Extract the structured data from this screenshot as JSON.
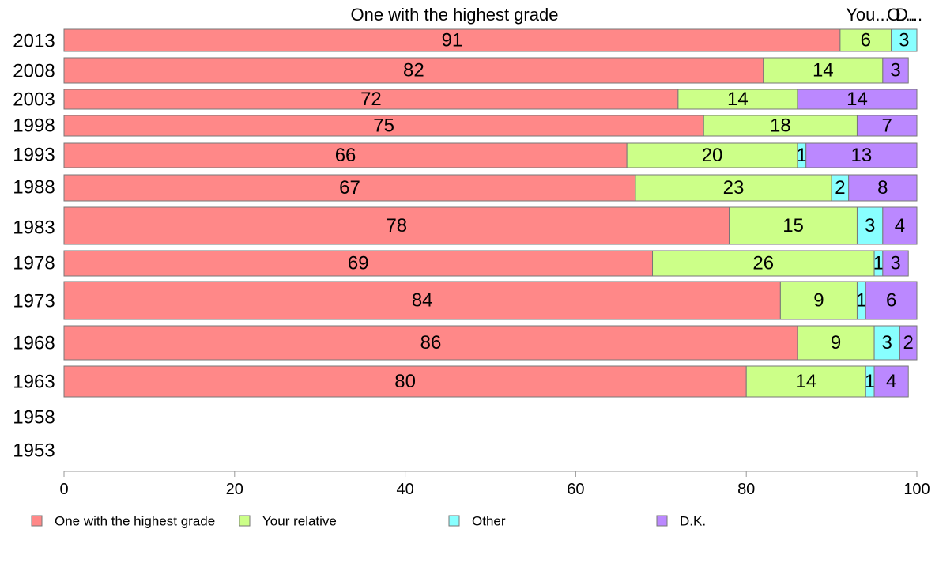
{
  "chart_data": {
    "type": "bar",
    "orientation": "horizontal",
    "stacked": true,
    "xlim": [
      0,
      100
    ],
    "xticks": [
      0,
      20,
      40,
      60,
      80,
      100
    ],
    "top_labels": [
      "One with the highest grade",
      "You...",
      "O...",
      "D..."
    ],
    "categories": [
      "2013",
      "2008",
      "2003",
      "1998",
      "1993",
      "1988",
      "1983",
      "1978",
      "1973",
      "1968",
      "1963",
      "1958",
      "1953"
    ],
    "series": [
      {
        "name": "One with the highest grade",
        "color": "#ff8888",
        "values": [
          91,
          82,
          72,
          75,
          66,
          67,
          78,
          69,
          84,
          86,
          80,
          null,
          null
        ]
      },
      {
        "name": "Your relative",
        "color": "#ccff88",
        "values": [
          6,
          14,
          14,
          18,
          20,
          23,
          15,
          26,
          9,
          9,
          14,
          null,
          null
        ]
      },
      {
        "name": "Other",
        "color": "#88ffff",
        "values": [
          3,
          0,
          0,
          0,
          1,
          2,
          3,
          1,
          1,
          3,
          1,
          null,
          null
        ]
      },
      {
        "name": "D.K.",
        "color": "#bb88ff",
        "values": [
          0,
          3,
          14,
          7,
          13,
          8,
          4,
          3,
          6,
          2,
          4,
          null,
          null
        ]
      }
    ],
    "legend_position": "bottom"
  }
}
